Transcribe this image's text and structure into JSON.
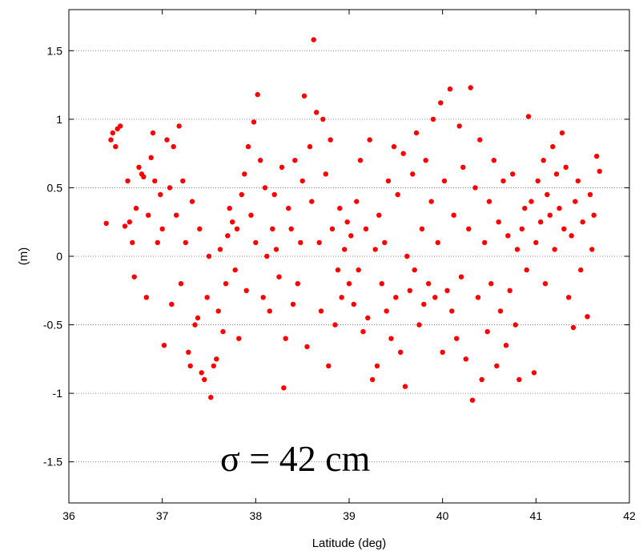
{
  "chart_data": {
    "type": "scatter",
    "title": "",
    "xlabel": "Latitude (deg)",
    "ylabel": "(m)",
    "xlim": [
      36,
      42
    ],
    "ylim": [
      -1.8,
      1.8
    ],
    "xticks": [
      "36",
      "37",
      "38",
      "39",
      "40",
      "41",
      "42"
    ],
    "yticks": [
      "1.5",
      "1",
      "0.5",
      "0",
      "-0.5",
      "-1",
      "-1.5"
    ],
    "grid": "horizontal dotted",
    "annotation": "σ = 42 cm",
    "marker_color": "#ff0000",
    "series": [
      {
        "points": [
          [
            36.4,
            0.24
          ],
          [
            36.45,
            0.85
          ],
          [
            36.47,
            0.9
          ],
          [
            36.5,
            0.8
          ],
          [
            36.52,
            0.93
          ],
          [
            36.55,
            0.95
          ],
          [
            36.6,
            0.22
          ],
          [
            36.63,
            0.55
          ],
          [
            36.65,
            0.25
          ],
          [
            36.68,
            0.1
          ],
          [
            36.7,
            -0.15
          ],
          [
            36.72,
            0.35
          ],
          [
            36.75,
            0.65
          ],
          [
            36.78,
            0.6
          ],
          [
            36.8,
            0.58
          ],
          [
            36.83,
            -0.3
          ],
          [
            36.85,
            0.3
          ],
          [
            36.88,
            0.72
          ],
          [
            36.9,
            0.9
          ],
          [
            36.92,
            0.55
          ],
          [
            36.95,
            0.1
          ],
          [
            36.98,
            0.45
          ],
          [
            37.0,
            0.2
          ],
          [
            37.02,
            -0.65
          ],
          [
            37.05,
            0.85
          ],
          [
            37.08,
            0.5
          ],
          [
            37.1,
            -0.35
          ],
          [
            37.12,
            0.8
          ],
          [
            37.15,
            0.3
          ],
          [
            37.18,
            0.95
          ],
          [
            37.2,
            -0.2
          ],
          [
            37.22,
            0.55
          ],
          [
            37.25,
            0.1
          ],
          [
            37.28,
            -0.7
          ],
          [
            37.3,
            -0.8
          ],
          [
            37.32,
            0.4
          ],
          [
            37.35,
            -0.5
          ],
          [
            37.38,
            -0.45
          ],
          [
            37.4,
            0.2
          ],
          [
            37.42,
            -0.85
          ],
          [
            37.45,
            -0.9
          ],
          [
            37.48,
            -0.3
          ],
          [
            37.5,
            0.0
          ],
          [
            37.52,
            -1.03
          ],
          [
            37.55,
            -0.8
          ],
          [
            37.58,
            -0.75
          ],
          [
            37.6,
            -0.4
          ],
          [
            37.62,
            0.05
          ],
          [
            37.65,
            -0.55
          ],
          [
            37.68,
            -0.2
          ],
          [
            37.7,
            0.15
          ],
          [
            37.72,
            0.35
          ],
          [
            37.75,
            0.25
          ],
          [
            37.78,
            -0.1
          ],
          [
            37.8,
            0.2
          ],
          [
            37.82,
            -0.6
          ],
          [
            37.85,
            0.45
          ],
          [
            37.88,
            0.6
          ],
          [
            37.9,
            -0.25
          ],
          [
            37.92,
            0.8
          ],
          [
            37.95,
            0.3
          ],
          [
            37.98,
            0.98
          ],
          [
            38.0,
            0.1
          ],
          [
            38.02,
            1.18
          ],
          [
            38.05,
            0.7
          ],
          [
            38.08,
            -0.3
          ],
          [
            38.1,
            0.5
          ],
          [
            38.12,
            0.0
          ],
          [
            38.15,
            -0.4
          ],
          [
            38.18,
            0.2
          ],
          [
            38.2,
            0.45
          ],
          [
            38.22,
            0.05
          ],
          [
            38.25,
            -0.15
          ],
          [
            38.28,
            0.65
          ],
          [
            38.3,
            -0.96
          ],
          [
            38.32,
            -0.6
          ],
          [
            38.35,
            0.35
          ],
          [
            38.38,
            0.2
          ],
          [
            38.4,
            -0.35
          ],
          [
            38.42,
            0.7
          ],
          [
            38.45,
            -0.2
          ],
          [
            38.48,
            0.1
          ],
          [
            38.5,
            0.55
          ],
          [
            38.52,
            1.17
          ],
          [
            38.55,
            -0.66
          ],
          [
            38.58,
            0.8
          ],
          [
            38.6,
            0.4
          ],
          [
            38.62,
            1.58
          ],
          [
            38.65,
            1.05
          ],
          [
            38.68,
            0.1
          ],
          [
            38.7,
            -0.4
          ],
          [
            38.72,
            1.0
          ],
          [
            38.75,
            0.6
          ],
          [
            38.78,
            -0.8
          ],
          [
            38.8,
            0.85
          ],
          [
            38.82,
            0.2
          ],
          [
            38.85,
            -0.5
          ],
          [
            38.88,
            -0.1
          ],
          [
            38.9,
            0.35
          ],
          [
            38.92,
            -0.3
          ],
          [
            38.95,
            0.05
          ],
          [
            38.98,
            0.25
          ],
          [
            39.0,
            -0.2
          ],
          [
            39.02,
            0.15
          ],
          [
            39.05,
            -0.35
          ],
          [
            39.08,
            0.4
          ],
          [
            39.1,
            -0.1
          ],
          [
            39.12,
            0.7
          ],
          [
            39.15,
            -0.55
          ],
          [
            39.18,
            0.2
          ],
          [
            39.2,
            -0.45
          ],
          [
            39.22,
            0.85
          ],
          [
            39.25,
            -0.9
          ],
          [
            39.28,
            0.05
          ],
          [
            39.3,
            -0.8
          ],
          [
            39.32,
            0.3
          ],
          [
            39.35,
            -0.2
          ],
          [
            39.38,
            0.1
          ],
          [
            39.4,
            -0.4
          ],
          [
            39.42,
            0.55
          ],
          [
            39.45,
            -0.6
          ],
          [
            39.48,
            0.8
          ],
          [
            39.5,
            -0.3
          ],
          [
            39.52,
            0.45
          ],
          [
            39.55,
            -0.7
          ],
          [
            39.58,
            0.75
          ],
          [
            39.6,
            -0.95
          ],
          [
            39.62,
            0.0
          ],
          [
            39.65,
            -0.25
          ],
          [
            39.68,
            0.6
          ],
          [
            39.7,
            -0.1
          ],
          [
            39.72,
            0.9
          ],
          [
            39.75,
            -0.5
          ],
          [
            39.78,
            0.2
          ],
          [
            39.8,
            -0.35
          ],
          [
            39.82,
            0.7
          ],
          [
            39.85,
            -0.2
          ],
          [
            39.88,
            0.4
          ],
          [
            39.9,
            1.0
          ],
          [
            39.92,
            -0.3
          ],
          [
            39.95,
            0.1
          ],
          [
            39.98,
            1.12
          ],
          [
            40.0,
            -0.7
          ],
          [
            40.02,
            0.55
          ],
          [
            40.05,
            -0.25
          ],
          [
            40.08,
            1.22
          ],
          [
            40.1,
            -0.4
          ],
          [
            40.12,
            0.3
          ],
          [
            40.15,
            -0.6
          ],
          [
            40.18,
            0.95
          ],
          [
            40.2,
            -0.15
          ],
          [
            40.22,
            0.65
          ],
          [
            40.25,
            -0.75
          ],
          [
            40.28,
            0.2
          ],
          [
            40.3,
            1.23
          ],
          [
            40.32,
            -1.05
          ],
          [
            40.35,
            0.5
          ],
          [
            40.38,
            -0.3
          ],
          [
            40.4,
            0.85
          ],
          [
            40.42,
            -0.9
          ],
          [
            40.45,
            0.1
          ],
          [
            40.48,
            -0.55
          ],
          [
            40.5,
            0.4
          ],
          [
            40.52,
            -0.2
          ],
          [
            40.55,
            0.7
          ],
          [
            40.58,
            -0.8
          ],
          [
            40.6,
            0.25
          ],
          [
            40.62,
            -0.4
          ],
          [
            40.65,
            0.55
          ],
          [
            40.68,
            -0.65
          ],
          [
            40.7,
            0.15
          ],
          [
            40.72,
            -0.25
          ],
          [
            40.75,
            0.6
          ],
          [
            40.78,
            -0.5
          ],
          [
            40.8,
            0.05
          ],
          [
            40.82,
            -0.9
          ],
          [
            40.85,
            0.2
          ],
          [
            40.88,
            0.35
          ],
          [
            40.9,
            -0.1
          ],
          [
            40.92,
            1.02
          ],
          [
            40.95,
            0.4
          ],
          [
            40.98,
            -0.85
          ],
          [
            41.0,
            0.1
          ],
          [
            41.02,
            0.55
          ],
          [
            41.05,
            0.25
          ],
          [
            41.08,
            0.7
          ],
          [
            41.1,
            -0.2
          ],
          [
            41.12,
            0.45
          ],
          [
            41.15,
            0.3
          ],
          [
            41.18,
            0.8
          ],
          [
            41.2,
            0.05
          ],
          [
            41.22,
            0.6
          ],
          [
            41.25,
            0.35
          ],
          [
            41.28,
            0.9
          ],
          [
            41.3,
            0.2
          ],
          [
            41.32,
            0.65
          ],
          [
            41.35,
            -0.3
          ],
          [
            41.38,
            0.15
          ],
          [
            41.4,
            -0.52
          ],
          [
            41.42,
            0.4
          ],
          [
            41.45,
            0.55
          ],
          [
            41.48,
            -0.1
          ],
          [
            41.5,
            0.25
          ],
          [
            41.55,
            -0.44
          ],
          [
            41.58,
            0.45
          ],
          [
            41.6,
            0.05
          ],
          [
            41.62,
            0.3
          ],
          [
            41.65,
            0.73
          ],
          [
            41.68,
            0.62
          ]
        ]
      }
    ]
  }
}
